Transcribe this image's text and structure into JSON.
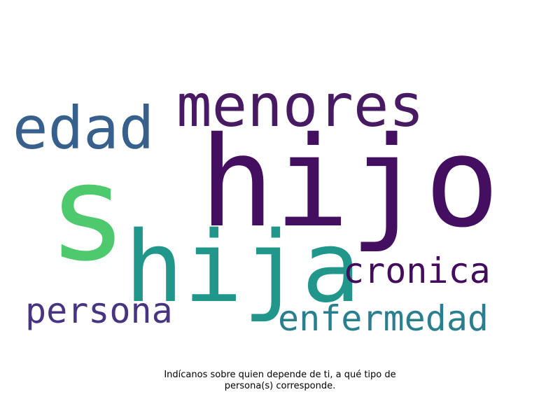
{
  "chart_data": {
    "type": "wordcloud",
    "words": [
      {
        "text": "s",
        "weight": 1.0,
        "color": "#4FC96E"
      },
      {
        "text": "hijo",
        "weight": 0.95,
        "color": "#440F60"
      },
      {
        "text": "hija",
        "weight": 0.75,
        "color": "#21978B"
      },
      {
        "text": "menores",
        "weight": 0.45,
        "color": "#481A63"
      },
      {
        "text": "edad",
        "weight": 0.45,
        "color": "#37608C"
      },
      {
        "text": "cronica",
        "weight": 0.28,
        "color": "#430C5C"
      },
      {
        "text": "persona",
        "weight": 0.28,
        "color": "#473581"
      },
      {
        "text": "enfermedad",
        "weight": 0.28,
        "color": "#2A7F8E"
      }
    ]
  },
  "caption": {
    "line1": "Indícanos sobre quien depende de ti, a qué tipo de",
    "line2": "persona(s) corresponde."
  }
}
